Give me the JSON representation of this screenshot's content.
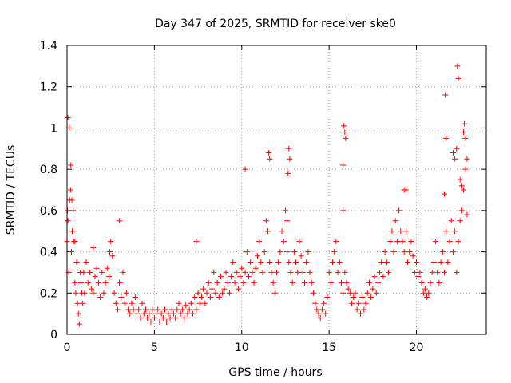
{
  "chart_data": {
    "type": "scatter",
    "title": "Day 347 of 2025, SRMTID for receiver ske0",
    "xlabel": "GPS time / hours",
    "ylabel": "SRMTID / TECUs",
    "xlim": [
      0,
      24
    ],
    "ylim": [
      0,
      1.4
    ],
    "xticks": [
      0,
      5,
      10,
      15,
      20
    ],
    "xtick_labels": [
      "0",
      "5",
      "10",
      "15",
      "20"
    ],
    "yticks": [
      0,
      0.2,
      0.4,
      0.6,
      0.8,
      1,
      1.2,
      1.4
    ],
    "ytick_labels": [
      "0",
      "0.2",
      "0.4",
      "0.6",
      "0.8",
      "1",
      "1.2",
      "1.4"
    ],
    "grid": true,
    "marker": "+",
    "series_color": "#ff0000",
    "series": [
      {
        "name": "SRMTID",
        "x": [
          0.0,
          0.05,
          0.1,
          0.15,
          0.2,
          0.25,
          0.3,
          0.35,
          0.4,
          0.45,
          0.5,
          0.55,
          0.6,
          0.65,
          0.7,
          0.75,
          0.8,
          0.85,
          0.9,
          0.95,
          1.0,
          1.1,
          1.2,
          1.3,
          1.4,
          1.5,
          1.6,
          1.7,
          1.8,
          1.9,
          2.0,
          2.1,
          2.2,
          2.3,
          2.4,
          2.5,
          2.6,
          2.7,
          2.8,
          2.9,
          3.0,
          3.1,
          3.2,
          3.3,
          3.4,
          3.5,
          3.6,
          3.7,
          3.8,
          3.9,
          4.0,
          4.1,
          4.2,
          4.3,
          4.4,
          4.5,
          4.6,
          4.7,
          4.8,
          4.9,
          5.0,
          5.1,
          5.2,
          5.3,
          5.4,
          5.5,
          5.6,
          5.7,
          5.8,
          5.9,
          6.0,
          6.1,
          6.2,
          6.3,
          6.4,
          6.5,
          6.6,
          6.7,
          6.8,
          6.9,
          7.0,
          7.1,
          7.2,
          7.3,
          7.4,
          7.5,
          7.6,
          7.7,
          7.8,
          7.9,
          8.0,
          8.1,
          8.2,
          8.3,
          8.4,
          8.5,
          8.6,
          8.7,
          8.8,
          8.9,
          9.0,
          9.1,
          9.2,
          9.3,
          9.4,
          9.5,
          9.6,
          9.7,
          9.8,
          9.9,
          10.0,
          10.1,
          10.2,
          10.3,
          10.4,
          10.5,
          10.6,
          10.7,
          10.8,
          10.9,
          11.0,
          11.1,
          11.2,
          11.3,
          11.4,
          11.5,
          11.6,
          11.7,
          11.8,
          11.9,
          12.0,
          12.1,
          12.2,
          12.3,
          12.4,
          12.5,
          12.6,
          12.7,
          12.8,
          12.9,
          13.0,
          13.1,
          13.2,
          13.3,
          13.4,
          13.5,
          13.6,
          13.7,
          13.8,
          13.9,
          14.0,
          14.1,
          14.2,
          14.3,
          14.4,
          14.5,
          14.6,
          14.7,
          14.8,
          14.9,
          15.0,
          15.1,
          15.2,
          15.3,
          15.4,
          15.5,
          15.6,
          15.7,
          15.8,
          15.9,
          16.0,
          16.1,
          16.2,
          16.3,
          16.4,
          16.5,
          16.6,
          16.7,
          16.8,
          16.9,
          17.0,
          17.1,
          17.2,
          17.3,
          17.4,
          17.5,
          17.6,
          17.7,
          17.8,
          17.9,
          18.0,
          18.1,
          18.2,
          18.3,
          18.4,
          18.5,
          18.6,
          18.7,
          18.8,
          18.9,
          19.0,
          19.1,
          19.2,
          19.3,
          19.4,
          19.5,
          19.6,
          19.7,
          19.8,
          19.9,
          20.0,
          20.1,
          20.2,
          20.3,
          20.4,
          20.5,
          20.6,
          20.7,
          20.8,
          20.9,
          21.0,
          21.1,
          21.2,
          21.3,
          21.4,
          21.5,
          21.6,
          21.7,
          21.8,
          21.9,
          22.0,
          22.1,
          22.2,
          22.3,
          22.4,
          22.5,
          22.6,
          22.7,
          22.8,
          22.9,
          0.02,
          0.05,
          0.12,
          0.22,
          0.28,
          0.35,
          0.45,
          1.5,
          2.45,
          3.0,
          7.4,
          10.2,
          11.5,
          11.55,
          11.6,
          12.6,
          12.65,
          12.7,
          12.75,
          15.8,
          15.85,
          15.9,
          15.95,
          15.8,
          19.3,
          19.4,
          21.6,
          21.65,
          21.7,
          22.3,
          22.35,
          22.4,
          22.7,
          22.75,
          22.8,
          22.1,
          22.2,
          22.5,
          22.6,
          22.9
        ],
        "y": [
          0.45,
          1.05,
          0.3,
          0.65,
          0.7,
          0.4,
          0.5,
          0.6,
          0.45,
          0.25,
          0.2,
          0.35,
          0.15,
          0.1,
          0.05,
          0.3,
          0.25,
          0.2,
          0.15,
          0.3,
          0.2,
          0.35,
          0.25,
          0.3,
          0.22,
          0.2,
          0.28,
          0.32,
          0.25,
          0.18,
          0.3,
          0.2,
          0.25,
          0.32,
          0.28,
          0.45,
          0.38,
          0.2,
          0.15,
          0.12,
          0.25,
          0.18,
          0.3,
          0.15,
          0.2,
          0.12,
          0.1,
          0.15,
          0.12,
          0.18,
          0.1,
          0.12,
          0.08,
          0.15,
          0.1,
          0.12,
          0.08,
          0.1,
          0.06,
          0.12,
          0.08,
          0.1,
          0.12,
          0.06,
          0.1,
          0.08,
          0.12,
          0.06,
          0.1,
          0.08,
          0.12,
          0.1,
          0.08,
          0.12,
          0.15,
          0.1,
          0.12,
          0.08,
          0.14,
          0.1,
          0.12,
          0.15,
          0.1,
          0.18,
          0.12,
          0.2,
          0.15,
          0.18,
          0.22,
          0.15,
          0.2,
          0.25,
          0.18,
          0.22,
          0.3,
          0.2,
          0.25,
          0.18,
          0.28,
          0.2,
          0.22,
          0.3,
          0.25,
          0.2,
          0.28,
          0.35,
          0.25,
          0.3,
          0.22,
          0.28,
          0.32,
          0.25,
          0.3,
          0.4,
          0.28,
          0.35,
          0.3,
          0.25,
          0.32,
          0.38,
          0.45,
          0.35,
          0.3,
          0.4,
          0.55,
          0.5,
          0.35,
          0.3,
          0.25,
          0.2,
          0.3,
          0.35,
          0.4,
          0.5,
          0.45,
          0.6,
          0.4,
          0.35,
          0.3,
          0.25,
          0.4,
          0.35,
          0.3,
          0.45,
          0.38,
          0.3,
          0.25,
          0.35,
          0.4,
          0.3,
          0.25,
          0.2,
          0.15,
          0.12,
          0.1,
          0.08,
          0.12,
          0.15,
          0.1,
          0.18,
          0.3,
          0.25,
          0.35,
          0.4,
          0.45,
          0.3,
          0.35,
          0.25,
          0.2,
          0.3,
          0.25,
          0.22,
          0.2,
          0.15,
          0.18,
          0.2,
          0.12,
          0.15,
          0.1,
          0.18,
          0.12,
          0.15,
          0.2,
          0.25,
          0.18,
          0.22,
          0.28,
          0.2,
          0.25,
          0.3,
          0.35,
          0.28,
          0.4,
          0.35,
          0.3,
          0.45,
          0.5,
          0.4,
          0.55,
          0.45,
          0.6,
          0.5,
          0.45,
          0.4,
          0.5,
          0.35,
          0.4,
          0.45,
          0.38,
          0.3,
          0.35,
          0.28,
          0.3,
          0.25,
          0.2,
          0.22,
          0.18,
          0.2,
          0.25,
          0.3,
          0.35,
          0.45,
          0.3,
          0.25,
          0.35,
          0.4,
          0.3,
          0.5,
          0.35,
          0.45,
          0.55,
          0.4,
          0.5,
          0.3,
          0.45,
          0.55,
          0.6,
          0.7,
          0.8,
          0.85,
          0.6,
          0.55,
          1.0,
          0.82,
          0.65,
          0.5,
          0.45,
          0.42,
          0.4,
          0.55,
          0.45,
          0.8,
          0.5,
          0.88,
          0.85,
          0.55,
          0.78,
          0.9,
          0.85,
          0.6,
          1.01,
          0.98,
          0.95,
          0.82,
          0.7,
          0.7,
          0.68,
          1.16,
          0.95,
          0.9,
          1.3,
          1.24,
          0.98,
          1.02,
          0.95,
          0.88,
          0.85,
          0.75,
          0.72,
          0.58
        ]
      }
    ]
  }
}
